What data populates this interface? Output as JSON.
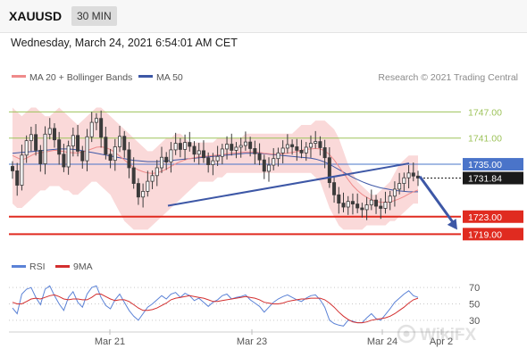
{
  "header": {
    "symbol": "XAUUSD",
    "timeframe": "30 MIN",
    "datetime": "Wednesday, March 24, 2021 6:54:01 AM CET"
  },
  "legend": {
    "bollinger": "MA 20 + Bollinger Bands",
    "ma50": "MA 50",
    "copyright": "Research © 2021 Trading Central"
  },
  "levels": [
    {
      "label": "1747.00",
      "value": 1747.0,
      "kind": "resistance"
    },
    {
      "label": "1741.00",
      "value": 1741.0,
      "kind": "resistance"
    },
    {
      "label": "1735.00",
      "value": 1735.0,
      "kind": "pivot"
    },
    {
      "label": "1731.84",
      "value": 1731.84,
      "kind": "last"
    },
    {
      "label": "1723.00",
      "value": 1723.0,
      "kind": "support"
    },
    {
      "label": "1719.00",
      "value": 1719.0,
      "kind": "support"
    }
  ],
  "rsi_panel": {
    "legend_rsi": "RSI",
    "legend_ma": "9MA",
    "ticks": [
      "70",
      "50",
      "30"
    ]
  },
  "x_axis": {
    "labels": [
      "Mar 21",
      "Mar 23",
      "Mar 24",
      "Apr 2"
    ]
  },
  "colors": {
    "resistance": "#9dc35a",
    "pivot": "#4a74c9",
    "support": "#e02b20",
    "last": "#1a1a1a",
    "candle": "#3b3b3b",
    "band": "#f8cccc",
    "ma20": "#ef8a8a",
    "ma50": "#3d57a6",
    "rsi": "#5b82d6",
    "rsi_ma": "#d32f2f",
    "trend": "#3d57a6"
  },
  "chart_data": {
    "type": "candlestick",
    "symbol": "XAUUSD",
    "interval": "30 MIN",
    "close": [
      1733.5,
      1730.2,
      1737.1,
      1740.4,
      1741.8,
      1738.2,
      1735.1,
      1741.9,
      1743.2,
      1740.6,
      1737.3,
      1734.4,
      1739.2,
      1741.6,
      1738.0,
      1735.8,
      1741.3,
      1744.6,
      1745.5,
      1741.2,
      1737.3,
      1735.9,
      1739.0,
      1741.4,
      1738.3,
      1734.2,
      1730.6,
      1727.5,
      1728.8,
      1731.1,
      1732.4,
      1734.2,
      1736.6,
      1735.5,
      1738.3,
      1739.8,
      1738.4,
      1740.0,
      1739.1,
      1737.3,
      1738.1,
      1736.5,
      1734.9,
      1735.8,
      1736.8,
      1738.5,
      1739.6,
      1738.2,
      1738.9,
      1739.3,
      1740.1,
      1738.6,
      1737.4,
      1736.0,
      1733.4,
      1734.8,
      1736.3,
      1737.6,
      1738.7,
      1739.5,
      1739.0,
      1738.2,
      1737.6,
      1738.9,
      1739.8,
      1740.2,
      1738.8,
      1736.5,
      1730.8,
      1728.0,
      1726.1,
      1725.2,
      1726.5,
      1725.9,
      1725.0,
      1724.6,
      1725.7,
      1726.8,
      1725.4,
      1724.9,
      1726.3,
      1727.7,
      1729.3,
      1730.6,
      1731.9,
      1733.0,
      1732.3,
      1731.84
    ],
    "bb_upper": [
      1748,
      1747,
      1746,
      1747,
      1748,
      1748,
      1747,
      1746,
      1746,
      1747,
      1748,
      1747,
      1746,
      1745,
      1744,
      1745,
      1746,
      1747,
      1748,
      1748,
      1747,
      1746,
      1745,
      1744,
      1743,
      1742,
      1741,
      1740,
      1739,
      1738,
      1738,
      1739,
      1740,
      1741,
      1741,
      1742,
      1742,
      1741,
      1740,
      1740,
      1740,
      1740,
      1740,
      1740,
      1741,
      1741,
      1741,
      1741,
      1741,
      1741,
      1742,
      1742,
      1742,
      1742,
      1742,
      1742,
      1742,
      1742,
      1742,
      1742,
      1742,
      1743,
      1744,
      1744,
      1744,
      1745,
      1745,
      1745,
      1744,
      1743,
      1741,
      1738,
      1735,
      1733,
      1731,
      1730,
      1729,
      1728,
      1728,
      1729,
      1730,
      1731,
      1733,
      1735,
      1736,
      1737,
      1737,
      1737
    ],
    "bb_lower": [
      1726,
      1725,
      1725,
      1726,
      1727,
      1728,
      1729,
      1729,
      1730,
      1730,
      1730,
      1729,
      1729,
      1728,
      1728,
      1729,
      1730,
      1731,
      1731,
      1730,
      1729,
      1728,
      1726,
      1724,
      1722,
      1721,
      1720,
      1720,
      1720,
      1720,
      1721,
      1722,
      1723,
      1724,
      1725,
      1726,
      1727,
      1728,
      1729,
      1730,
      1731,
      1731,
      1731,
      1731,
      1732,
      1732,
      1733,
      1733,
      1733,
      1733,
      1733,
      1733,
      1733,
      1733,
      1733,
      1733,
      1733,
      1733,
      1733,
      1733,
      1733,
      1733,
      1733,
      1733,
      1733,
      1732,
      1731,
      1728,
      1725,
      1723,
      1721,
      1720,
      1720,
      1720,
      1720,
      1720,
      1721,
      1721,
      1721,
      1721,
      1721,
      1722,
      1722,
      1723,
      1724,
      1725,
      1726,
      1726
    ],
    "ma20": [
      1737,
      1736.5,
      1736,
      1736.4,
      1737,
      1737.5,
      1737.6,
      1737.8,
      1738,
      1738.2,
      1738.1,
      1737.9,
      1737.7,
      1737.6,
      1737.6,
      1737.8,
      1738.1,
      1738.5,
      1738.9,
      1739,
      1738.8,
      1738.4,
      1737.7,
      1736.9,
      1736,
      1735.1,
      1734.3,
      1733.7,
      1733.3,
      1733,
      1732.9,
      1733,
      1733.4,
      1733.9,
      1734.5,
      1735.1,
      1735.6,
      1736,
      1736.3,
      1736.5,
      1736.7,
      1736.8,
      1736.9,
      1737,
      1737.1,
      1737.2,
      1737.4,
      1737.5,
      1737.6,
      1737.7,
      1737.8,
      1737.8,
      1737.8,
      1737.7,
      1737.5,
      1737.4,
      1737.3,
      1737.3,
      1737.4,
      1737.5,
      1737.7,
      1737.9,
      1738.2,
      1738.4,
      1738.5,
      1738.6,
      1738.5,
      1738.1,
      1737.2,
      1736,
      1734.5,
      1733,
      1731.5,
      1730.1,
      1729,
      1728.1,
      1727.4,
      1726.9,
      1726.5,
      1726.3,
      1726.3,
      1726.4,
      1726.7,
      1727.1,
      1727.6,
      1728.2,
      1728.7,
      1729.1
    ],
    "ma50": [
      1737.5,
      1737.6,
      1737.7,
      1737.8,
      1737.9,
      1738,
      1738.1,
      1738.2,
      1738.3,
      1738.4,
      1738.5,
      1738.5,
      1738.5,
      1738.4,
      1738.3,
      1738.1,
      1737.9,
      1737.7,
      1737.5,
      1737.3,
      1737.1,
      1736.9,
      1736.7,
      1736.5,
      1736.3,
      1736.1,
      1735.9,
      1735.8,
      1735.7,
      1735.6,
      1735.6,
      1735.6,
      1735.7,
      1735.8,
      1735.9,
      1736,
      1736.1,
      1736.2,
      1736.3,
      1736.4,
      1736.5,
      1736.6,
      1736.7,
      1736.8,
      1736.9,
      1737,
      1737.1,
      1737.2,
      1737.3,
      1737.4,
      1737.5,
      1737.5,
      1737.5,
      1737.5,
      1737.4,
      1737.3,
      1737.2,
      1737.1,
      1737,
      1736.9,
      1736.8,
      1736.7,
      1736.6,
      1736.5,
      1736.4,
      1736.2,
      1735.9,
      1735.5,
      1735,
      1734.4,
      1733.8,
      1733.2,
      1732.6,
      1732,
      1731.5,
      1731,
      1730.6,
      1730.2,
      1729.9,
      1729.6,
      1729.4,
      1729.2,
      1729,
      1728.9,
      1728.8,
      1728.7,
      1728.7,
      1728.7
    ],
    "rsi": [
      45,
      38,
      62,
      68,
      70,
      58,
      49,
      68,
      72,
      60,
      50,
      42,
      58,
      65,
      52,
      46,
      62,
      70,
      72,
      58,
      48,
      44,
      55,
      62,
      52,
      42,
      35,
      30,
      38,
      46,
      50,
      55,
      60,
      56,
      62,
      64,
      58,
      63,
      60,
      54,
      57,
      52,
      47,
      52,
      55,
      60,
      62,
      56,
      58,
      59,
      61,
      55,
      51,
      47,
      40,
      46,
      52,
      56,
      59,
      61,
      58,
      55,
      53,
      57,
      60,
      61,
      55,
      46,
      30,
      26,
      24,
      23,
      30,
      29,
      27,
      27,
      33,
      38,
      32,
      30,
      37,
      44,
      52,
      57,
      62,
      66,
      60,
      58
    ],
    "rsi_ma": [
      52,
      50,
      50,
      53,
      56,
      57,
      56,
      58,
      60,
      61,
      59,
      56,
      55,
      56,
      56,
      55,
      55,
      58,
      62,
      62,
      59,
      56,
      54,
      55,
      55,
      53,
      49,
      45,
      42,
      42,
      43,
      45,
      48,
      51,
      55,
      57,
      58,
      59,
      60,
      59,
      58,
      57,
      55,
      53,
      53,
      54,
      55,
      56,
      57,
      58,
      59,
      58,
      57,
      55,
      52,
      51,
      50,
      50,
      51,
      53,
      54,
      55,
      56,
      56,
      57,
      57,
      57,
      55,
      51,
      46,
      40,
      35,
      31,
      28,
      27,
      27,
      28,
      30,
      31,
      32,
      33,
      35,
      38,
      42,
      46,
      51,
      55,
      57
    ],
    "trendline": {
      "start_price": 1725.5,
      "end_price": 1735.2
    },
    "projection": {
      "from_price": 1732.2,
      "to_price": 1720.0
    },
    "levels": [
      1747.0,
      1741.0,
      1735.0,
      1723.0,
      1719.0
    ],
    "last_price": 1731.84,
    "rsi_levels": [
      70,
      50,
      30
    ],
    "x_labels": [
      "Mar 21",
      "Mar 23",
      "Mar 24",
      "Apr 2"
    ]
  }
}
